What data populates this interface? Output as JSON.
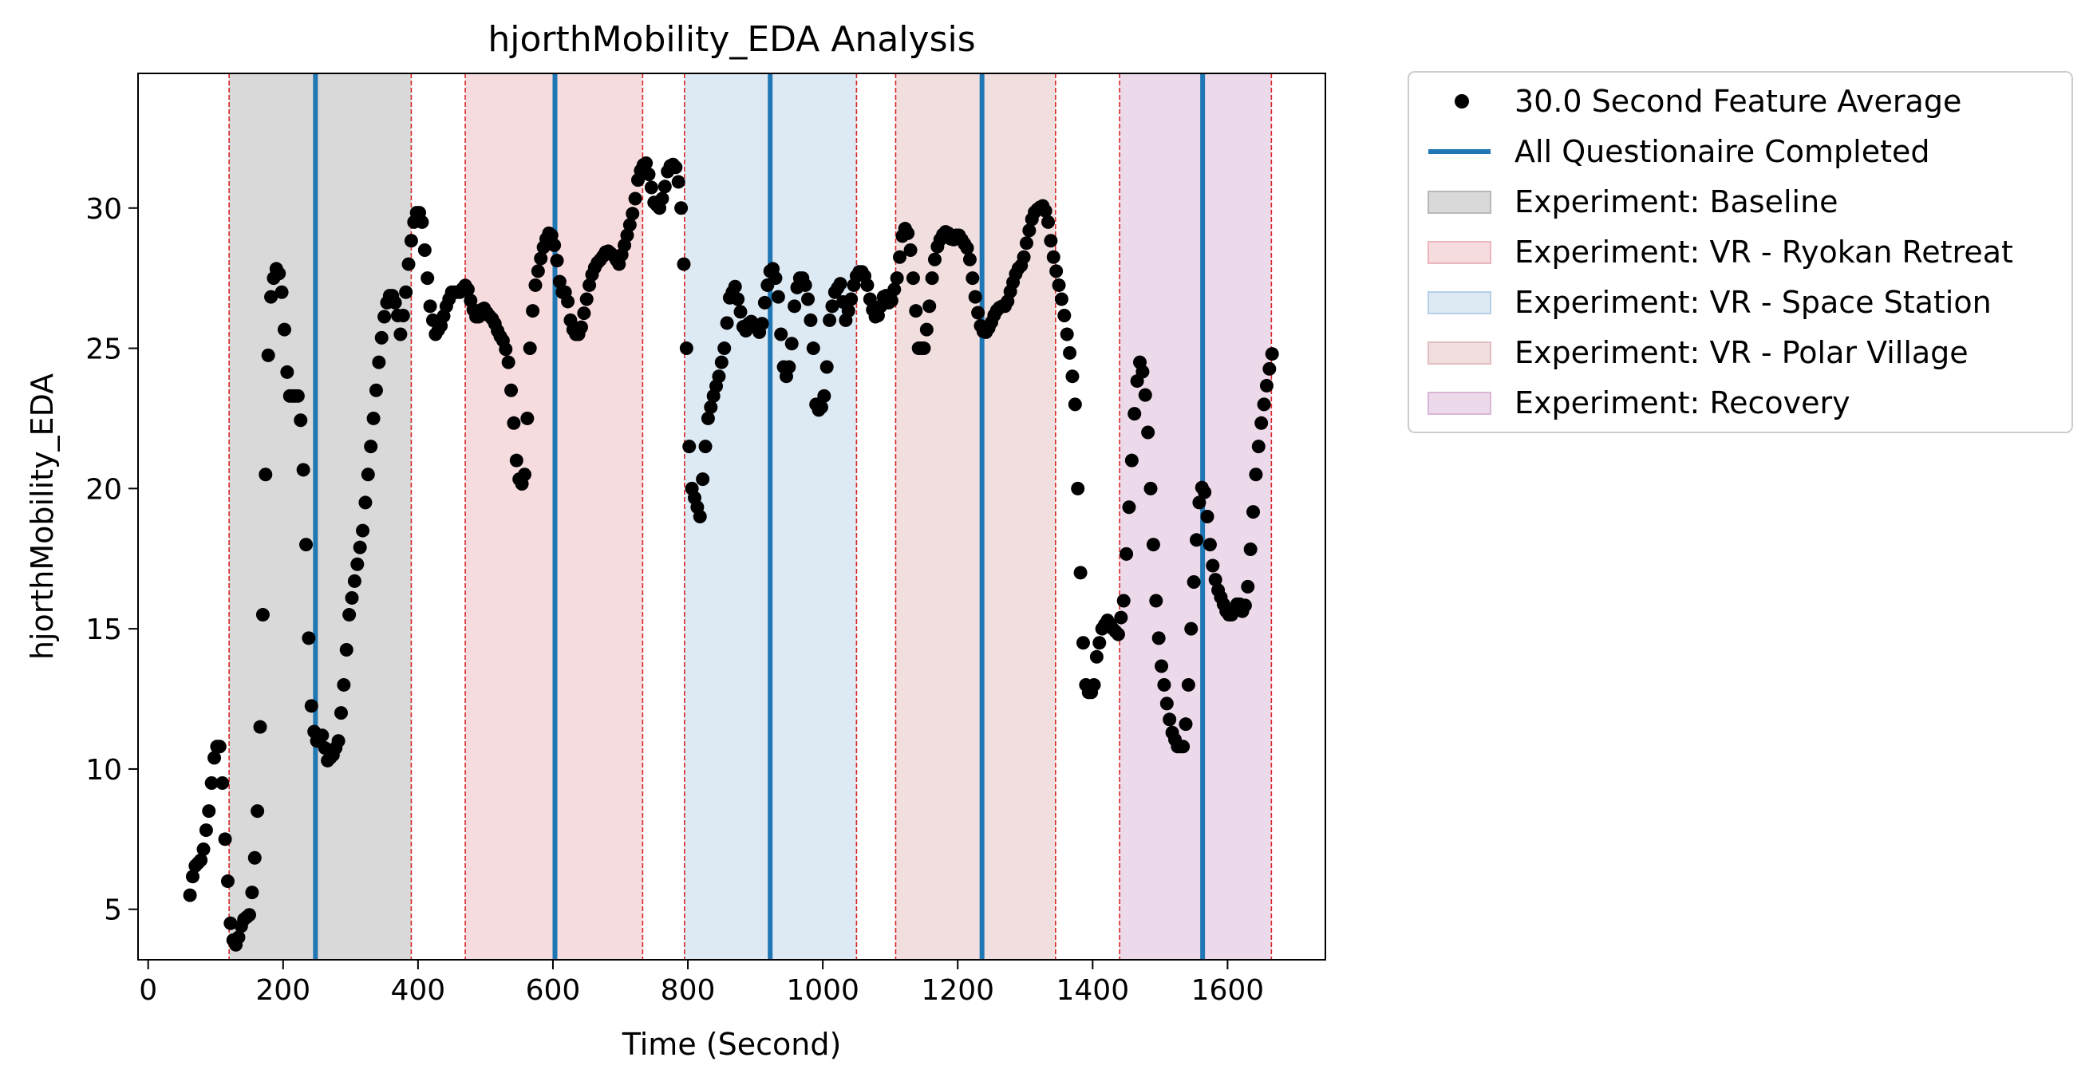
{
  "chart_data": {
    "type": "scatter",
    "title": "hjorthMobility_EDA Analysis",
    "xlabel": "Time (Second)",
    "ylabel": "hjorthMobility_EDA",
    "xlim": [
      -15,
      1745
    ],
    "ylim": [
      3.2,
      34.8
    ],
    "xticks": [
      0,
      200,
      400,
      600,
      800,
      1000,
      1200,
      1400,
      1600
    ],
    "yticks": [
      5,
      10,
      15,
      20,
      25,
      30
    ],
    "grid": false,
    "legend_placement": "outside-right-top",
    "series": [
      {
        "name": "30.0 Second Feature Average",
        "kind": "points",
        "color": "#000000",
        "step": 4,
        "keypoints": [
          [
            62,
            5.5
          ],
          [
            68,
            6.5
          ],
          [
            80,
            6.8
          ],
          [
            90,
            8.5
          ],
          [
            96,
            10.0
          ],
          [
            100,
            10.8
          ],
          [
            106,
            10.8
          ],
          [
            110,
            9.5
          ],
          [
            114,
            7.5
          ],
          [
            118,
            6.0
          ],
          [
            122,
            4.5
          ],
          [
            128,
            3.6
          ],
          [
            134,
            4.0
          ],
          [
            140,
            4.6
          ],
          [
            150,
            4.8
          ],
          [
            156,
            6.0
          ],
          [
            162,
            8.5
          ],
          [
            168,
            13.0
          ],
          [
            172,
            18.0
          ],
          [
            176,
            23.0
          ],
          [
            180,
            26.5
          ],
          [
            186,
            27.5
          ],
          [
            192,
            28.0
          ],
          [
            198,
            27.0
          ],
          [
            204,
            25.0
          ],
          [
            208,
            23.3
          ],
          [
            222,
            23.3
          ],
          [
            228,
            22.0
          ],
          [
            234,
            18.0
          ],
          [
            240,
            13.0
          ],
          [
            244,
            11.5
          ],
          [
            250,
            11.0
          ],
          [
            258,
            11.2
          ],
          [
            266,
            10.3
          ],
          [
            274,
            10.5
          ],
          [
            282,
            11.0
          ],
          [
            290,
            13.0
          ],
          [
            298,
            15.5
          ],
          [
            308,
            17.0
          ],
          [
            318,
            18.5
          ],
          [
            328,
            21.0
          ],
          [
            336,
            23.0
          ],
          [
            344,
            25.0
          ],
          [
            352,
            26.5
          ],
          [
            360,
            27.0
          ],
          [
            368,
            26.5
          ],
          [
            374,
            25.5
          ],
          [
            380,
            26.5
          ],
          [
            388,
            28.5
          ],
          [
            394,
            29.5
          ],
          [
            400,
            30.0
          ],
          [
            406,
            29.5
          ],
          [
            412,
            28.0
          ],
          [
            418,
            26.5
          ],
          [
            426,
            25.5
          ],
          [
            434,
            25.8
          ],
          [
            442,
            26.5
          ],
          [
            450,
            27.0
          ],
          [
            462,
            27.0
          ],
          [
            472,
            27.3
          ],
          [
            480,
            26.5
          ],
          [
            488,
            26.0
          ],
          [
            496,
            26.5
          ],
          [
            504,
            26.2
          ],
          [
            512,
            26.0
          ],
          [
            520,
            25.5
          ],
          [
            528,
            25.2
          ],
          [
            534,
            24.5
          ],
          [
            540,
            23.0
          ],
          [
            546,
            21.0
          ],
          [
            552,
            20.0
          ],
          [
            558,
            20.5
          ],
          [
            562,
            22.5
          ],
          [
            566,
            25.0
          ],
          [
            572,
            27.0
          ],
          [
            580,
            28.0
          ],
          [
            588,
            28.8
          ],
          [
            596,
            29.2
          ],
          [
            604,
            28.5
          ],
          [
            612,
            27.0
          ],
          [
            620,
            27.0
          ],
          [
            626,
            26.0
          ],
          [
            632,
            25.5
          ],
          [
            640,
            25.5
          ],
          [
            648,
            26.5
          ],
          [
            656,
            27.5
          ],
          [
            664,
            28.0
          ],
          [
            672,
            28.2
          ],
          [
            680,
            28.5
          ],
          [
            690,
            28.3
          ],
          [
            698,
            28.0
          ],
          [
            704,
            28.5
          ],
          [
            712,
            29.2
          ],
          [
            720,
            30.0
          ],
          [
            726,
            31.0
          ],
          [
            732,
            31.5
          ],
          [
            738,
            31.6
          ],
          [
            744,
            31.0
          ],
          [
            750,
            30.2
          ],
          [
            758,
            30.0
          ],
          [
            764,
            30.5
          ],
          [
            770,
            31.3
          ],
          [
            776,
            31.6
          ],
          [
            784,
            31.4
          ],
          [
            790,
            30.0
          ],
          [
            794,
            28.0
          ],
          [
            798,
            25.0
          ],
          [
            802,
            21.5
          ],
          [
            806,
            20.0
          ],
          [
            812,
            19.5
          ],
          [
            818,
            19.0
          ],
          [
            824,
            21.0
          ],
          [
            830,
            22.5
          ],
          [
            838,
            23.3
          ],
          [
            846,
            24.0
          ],
          [
            854,
            25.0
          ],
          [
            862,
            26.8
          ],
          [
            870,
            27.2
          ],
          [
            878,
            26.3
          ],
          [
            884,
            25.5
          ],
          [
            892,
            26.0
          ],
          [
            900,
            25.8
          ],
          [
            908,
            25.5
          ],
          [
            916,
            27.0
          ],
          [
            924,
            28.0
          ],
          [
            930,
            27.5
          ],
          [
            936,
            26.5
          ],
          [
            940,
            24.5
          ],
          [
            946,
            24.0
          ],
          [
            952,
            24.5
          ],
          [
            958,
            26.5
          ],
          [
            964,
            27.5
          ],
          [
            972,
            27.5
          ],
          [
            980,
            26.5
          ],
          [
            986,
            25.0
          ],
          [
            990,
            23.0
          ],
          [
            996,
            22.7
          ],
          [
            1004,
            23.5
          ],
          [
            1010,
            26.0
          ],
          [
            1018,
            27.0
          ],
          [
            1026,
            27.3
          ],
          [
            1034,
            26.0
          ],
          [
            1040,
            26.5
          ],
          [
            1048,
            27.5
          ],
          [
            1056,
            27.8
          ],
          [
            1064,
            27.5
          ],
          [
            1072,
            26.5
          ],
          [
            1080,
            26.0
          ],
          [
            1086,
            26.5
          ],
          [
            1092,
            27.0
          ],
          [
            1100,
            26.5
          ],
          [
            1110,
            27.5
          ],
          [
            1118,
            29.0
          ],
          [
            1124,
            29.4
          ],
          [
            1130,
            28.5
          ],
          [
            1136,
            27.0
          ],
          [
            1142,
            25.0
          ],
          [
            1150,
            25.0
          ],
          [
            1156,
            26.0
          ],
          [
            1162,
            27.5
          ],
          [
            1168,
            28.5
          ],
          [
            1176,
            29.0
          ],
          [
            1184,
            29.2
          ],
          [
            1192,
            28.8
          ],
          [
            1200,
            29.1
          ],
          [
            1208,
            28.8
          ],
          [
            1216,
            28.5
          ],
          [
            1222,
            27.5
          ],
          [
            1228,
            26.5
          ],
          [
            1234,
            25.8
          ],
          [
            1240,
            25.5
          ],
          [
            1248,
            25.8
          ],
          [
            1256,
            26.3
          ],
          [
            1264,
            26.5
          ],
          [
            1272,
            26.5
          ],
          [
            1280,
            27.2
          ],
          [
            1288,
            27.8
          ],
          [
            1296,
            28.0
          ],
          [
            1304,
            29.0
          ],
          [
            1312,
            29.8
          ],
          [
            1320,
            30.0
          ],
          [
            1328,
            30.1
          ],
          [
            1334,
            29.5
          ],
          [
            1340,
            28.5
          ],
          [
            1348,
            27.5
          ],
          [
            1356,
            26.5
          ],
          [
            1362,
            25.5
          ],
          [
            1368,
            24.5
          ],
          [
            1374,
            23.0
          ],
          [
            1378,
            20.0
          ],
          [
            1382,
            17.0
          ],
          [
            1386,
            14.5
          ],
          [
            1390,
            13.0
          ],
          [
            1396,
            12.6
          ],
          [
            1402,
            13.0
          ],
          [
            1406,
            14.0
          ],
          [
            1414,
            15.0
          ],
          [
            1422,
            15.3
          ],
          [
            1430,
            15.0
          ],
          [
            1438,
            14.8
          ],
          [
            1446,
            16.0
          ],
          [
            1452,
            18.5
          ],
          [
            1458,
            21.0
          ],
          [
            1464,
            23.5
          ],
          [
            1470,
            24.5
          ],
          [
            1476,
            24.0
          ],
          [
            1482,
            22.0
          ],
          [
            1488,
            19.0
          ],
          [
            1494,
            16.0
          ],
          [
            1500,
            14.0
          ],
          [
            1506,
            13.0
          ],
          [
            1512,
            12.0
          ],
          [
            1518,
            11.3
          ],
          [
            1526,
            10.8
          ],
          [
            1534,
            10.8
          ],
          [
            1540,
            12.0
          ],
          [
            1546,
            15.0
          ],
          [
            1552,
            17.5
          ],
          [
            1558,
            19.5
          ],
          [
            1564,
            20.3
          ],
          [
            1570,
            19.0
          ],
          [
            1576,
            17.5
          ],
          [
            1584,
            16.5
          ],
          [
            1592,
            16.0
          ],
          [
            1600,
            15.5
          ],
          [
            1608,
            15.5
          ],
          [
            1616,
            16.0
          ],
          [
            1624,
            15.5
          ],
          [
            1630,
            16.5
          ],
          [
            1636,
            18.5
          ],
          [
            1642,
            20.5
          ],
          [
            1648,
            22.0
          ],
          [
            1654,
            23.0
          ],
          [
            1660,
            24.0
          ],
          [
            1666,
            24.8
          ]
        ]
      },
      {
        "name": "All Questionaire Completed",
        "kind": "vlines",
        "color": "#1f77b4",
        "x": [
          248,
          603,
          922,
          1236,
          1563
        ]
      }
    ],
    "spans": [
      {
        "name": "Experiment: Baseline",
        "start": 120,
        "end": 390,
        "color": "#d9d9d9"
      },
      {
        "name": "Experiment: VR - Ryokan Retreat",
        "start": 470,
        "end": 733,
        "color": "#f7dcdf"
      },
      {
        "name": "Experiment: VR - Space Station",
        "start": 795,
        "end": 1050,
        "color": "#dde9f3"
      },
      {
        "name": "Experiment: VR - Polar Village",
        "start": 1108,
        "end": 1345,
        "color": "#f1dedf"
      },
      {
        "name": "Experiment: Recovery",
        "start": 1440,
        "end": 1665,
        "color": "#ecd9ea"
      }
    ],
    "boundary_lines": [
      120,
      390,
      470,
      733,
      795,
      1050,
      1108,
      1345,
      1440,
      1665
    ],
    "boundary_color": "#d62728",
    "legend": [
      {
        "label": "30.0 Second Feature Average",
        "kind": "dot",
        "color": "#000000"
      },
      {
        "label": "All Questionaire Completed",
        "kind": "line",
        "color": "#1f77b4"
      },
      {
        "label": "Experiment: Baseline",
        "kind": "patch",
        "color": "#d9d9d9",
        "edge": "#b8b8b8"
      },
      {
        "label": "Experiment: VR - Ryokan Retreat",
        "kind": "patch",
        "color": "#f7dcdf",
        "edge": "#eab5bb"
      },
      {
        "label": "Experiment: VR - Space Station",
        "kind": "patch",
        "color": "#dde9f3",
        "edge": "#b6cfe6"
      },
      {
        "label": "Experiment: VR - Polar Village",
        "kind": "patch",
        "color": "#f1dedf",
        "edge": "#e2bdbf"
      },
      {
        "label": "Experiment: Recovery",
        "kind": "patch",
        "color": "#ecd9ea",
        "edge": "#d9b5d6"
      }
    ]
  }
}
